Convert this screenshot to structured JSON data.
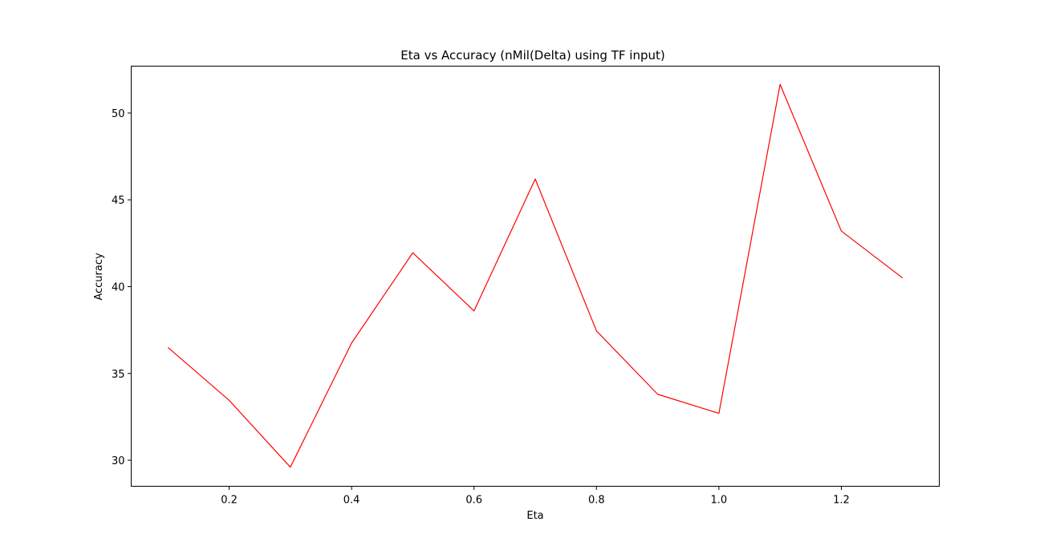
{
  "chart_data": {
    "type": "line",
    "title": "Eta vs Accuracy (nMil(Delta) using TF input)",
    "xlabel": "Eta",
    "ylabel": "Accuracy",
    "xlim": [
      0.04,
      1.36
    ],
    "ylim": [
      28.5,
      52.7
    ],
    "x_ticks": [
      0.2,
      0.4,
      0.6,
      0.8,
      1.0,
      1.2
    ],
    "x_tick_labels": [
      "0.2",
      "0.4",
      "0.6",
      "0.8",
      "1.0",
      "1.2"
    ],
    "y_ticks": [
      30,
      35,
      40,
      45,
      50
    ],
    "y_tick_labels": [
      "30",
      "35",
      "40",
      "45",
      "50"
    ],
    "grid": false,
    "legend": "none",
    "series": [
      {
        "color": "#ff0000",
        "x": [
          0.1,
          0.2,
          0.3,
          0.4,
          0.5,
          0.6,
          0.7,
          0.8,
          0.9,
          1.0,
          1.1,
          1.2,
          1.3
        ],
        "values": [
          36.5,
          33.45,
          29.6,
          36.75,
          41.95,
          38.6,
          46.2,
          37.45,
          33.8,
          32.7,
          51.65,
          43.2,
          40.5
        ]
      }
    ]
  }
}
